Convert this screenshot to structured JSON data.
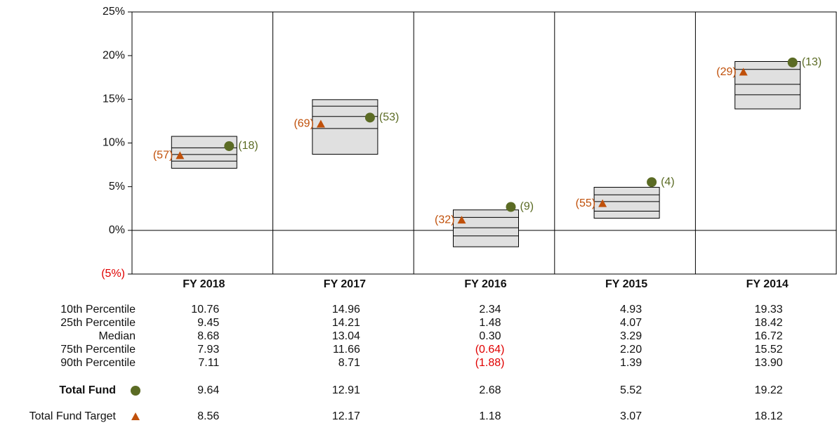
{
  "chart_data": {
    "type": "percentile_box",
    "categories": [
      "FY 2018",
      "FY 2017",
      "FY 2016",
      "FY 2015",
      "FY 2014"
    ],
    "ylim": [
      -5,
      25
    ],
    "yticks": [
      {
        "value": 25,
        "label": "25%"
      },
      {
        "value": 20,
        "label": "20%"
      },
      {
        "value": 15,
        "label": "15%"
      },
      {
        "value": 10,
        "label": "10%"
      },
      {
        "value": 5,
        "label": "5%"
      },
      {
        "value": 0,
        "label": "0%"
      },
      {
        "value": -5,
        "label": "(5%)"
      }
    ],
    "box_color": "#e0e0e0",
    "negative_color": "#e00000",
    "percentiles": [
      {
        "name": "10th Percentile",
        "values": [
          10.76,
          14.96,
          2.34,
          4.93,
          19.33
        ],
        "value_labels": [
          "10.76",
          "14.96",
          "2.34",
          "4.93",
          "19.33"
        ]
      },
      {
        "name": "25th Percentile",
        "values": [
          9.45,
          14.21,
          1.48,
          4.07,
          18.42
        ],
        "value_labels": [
          "9.45",
          "14.21",
          "1.48",
          "4.07",
          "18.42"
        ]
      },
      {
        "name": "Median",
        "values": [
          8.68,
          13.04,
          0.3,
          3.29,
          16.72
        ],
        "value_labels": [
          "8.68",
          "13.04",
          "0.30",
          "3.29",
          "16.72"
        ]
      },
      {
        "name": "75th Percentile",
        "values": [
          7.93,
          11.66,
          -0.64,
          2.2,
          15.52
        ],
        "value_labels": [
          "7.93",
          "11.66",
          "(0.64)",
          "2.20",
          "15.52"
        ]
      },
      {
        "name": "90th Percentile",
        "values": [
          7.11,
          8.71,
          -1.88,
          1.39,
          13.9
        ],
        "value_labels": [
          "7.11",
          "8.71",
          "(1.88)",
          "1.39",
          "13.90"
        ]
      }
    ],
    "series": [
      {
        "name": "Total Fund",
        "marker": "circle",
        "color": "#5b6b24",
        "values": [
          9.64,
          12.91,
          2.68,
          5.52,
          19.22
        ],
        "value_labels": [
          "9.64",
          "12.91",
          "2.68",
          "5.52",
          "19.22"
        ],
        "rank_labels": [
          "(18)",
          "(53)",
          "(9)",
          "(4)",
          "(13)"
        ]
      },
      {
        "name": "Total Fund Target",
        "marker": "triangle",
        "color": "#c0500a",
        "values": [
          8.56,
          12.17,
          1.18,
          3.07,
          18.12
        ],
        "value_labels": [
          "8.56",
          "12.17",
          "1.18",
          "3.07",
          "18.12"
        ],
        "rank_labels": [
          "(57)",
          "(69)",
          "(32)",
          "(55)",
          "(29)"
        ]
      }
    ]
  }
}
